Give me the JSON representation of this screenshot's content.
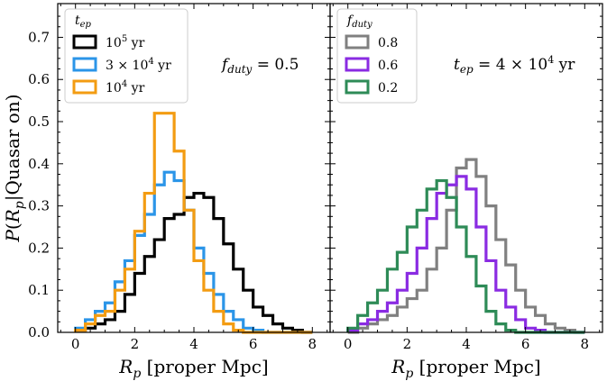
{
  "chart_data": [
    {
      "type": "line",
      "panel": "left",
      "title": "",
      "xlabel": "R_p [proper Mpc]",
      "ylabel": "P(R_p|Quasar on)",
      "xlim": [
        -0.6,
        8.6
      ],
      "ylim": [
        0,
        0.78
      ],
      "xticks": [
        0,
        2,
        4,
        6,
        8
      ],
      "yticks": [
        0.0,
        0.1,
        0.2,
        0.3,
        0.4,
        0.5,
        0.6,
        0.7
      ],
      "annotation": {
        "lhs": "f",
        "sub": "duty",
        "rhs": " = 0.5"
      },
      "legend": {
        "title_main": "t",
        "title_sub": "ep",
        "position": "upper-left"
      },
      "bin_edges": [
        0.0,
        0.333,
        0.667,
        1.0,
        1.333,
        1.667,
        2.0,
        2.333,
        2.667,
        3.0,
        3.333,
        3.667,
        4.0,
        4.333,
        4.667,
        5.0,
        5.333,
        5.667,
        6.0,
        6.333,
        6.667,
        7.0,
        7.333,
        7.667,
        8.0
      ],
      "series": [
        {
          "name": "10^5 yr",
          "label_base": "10",
          "label_sup": "5",
          "label_unit": " yr",
          "color": "#000000",
          "values": [
            0.005,
            0.01,
            0.02,
            0.03,
            0.05,
            0.09,
            0.14,
            0.18,
            0.22,
            0.27,
            0.28,
            0.32,
            0.33,
            0.32,
            0.27,
            0.21,
            0.15,
            0.1,
            0.06,
            0.04,
            0.02,
            0.01,
            0.005,
            0.0
          ]
        },
        {
          "name": "3 x 10^4 yr",
          "label_base": "3 × 10",
          "label_sup": "4",
          "label_unit": " yr",
          "color": "#2b95e8",
          "values": [
            0.01,
            0.03,
            0.05,
            0.07,
            0.12,
            0.17,
            0.23,
            0.28,
            0.35,
            0.38,
            0.36,
            0.29,
            0.2,
            0.14,
            0.09,
            0.05,
            0.03,
            0.01,
            0.005,
            0.0,
            0.0,
            0.0,
            0.0,
            0.0
          ]
        },
        {
          "name": "10^4 yr",
          "label_base": "10",
          "label_sup": "4",
          "label_unit": " yr",
          "color": "#f39c12",
          "values": [
            0.005,
            0.02,
            0.04,
            0.05,
            0.1,
            0.15,
            0.24,
            0.33,
            0.52,
            0.52,
            0.43,
            0.29,
            0.17,
            0.1,
            0.05,
            0.02,
            0.005,
            0.0,
            0.0,
            0.0,
            0.0,
            0.0,
            0.0,
            0.0
          ]
        }
      ]
    },
    {
      "type": "line",
      "panel": "right",
      "title": "",
      "xlabel": "R_p [proper Mpc]",
      "ylabel": "",
      "xlim": [
        -0.6,
        8.6
      ],
      "ylim": [
        0,
        0.78
      ],
      "xticks": [
        0,
        2,
        4,
        6,
        8
      ],
      "yticks": [],
      "annotation": {
        "lhs": "t",
        "sub": "ep",
        "rhs": " = 4 × 10",
        "sup": "4",
        "unit": " yr"
      },
      "legend": {
        "title_main": "f",
        "title_sub": "duty",
        "position": "upper-left"
      },
      "bin_edges": [
        0.0,
        0.333,
        0.667,
        1.0,
        1.333,
        1.667,
        2.0,
        2.333,
        2.667,
        3.0,
        3.333,
        3.667,
        4.0,
        4.333,
        4.667,
        5.0,
        5.333,
        5.667,
        6.0,
        6.333,
        6.667,
        7.0,
        7.333,
        7.667,
        8.0
      ],
      "series": [
        {
          "name": "0.8",
          "label_base": "0.8",
          "label_sup": "",
          "label_unit": "",
          "color": "#808080",
          "values": [
            0.0,
            0.01,
            0.02,
            0.03,
            0.04,
            0.06,
            0.08,
            0.1,
            0.15,
            0.2,
            0.29,
            0.39,
            0.41,
            0.37,
            0.3,
            0.22,
            0.16,
            0.1,
            0.06,
            0.04,
            0.02,
            0.01,
            0.005,
            0.0
          ]
        },
        {
          "name": "0.6",
          "label_base": "0.6",
          "label_sup": "",
          "label_unit": "",
          "color": "#8a2be2",
          "values": [
            0.005,
            0.02,
            0.03,
            0.05,
            0.07,
            0.1,
            0.14,
            0.2,
            0.27,
            0.33,
            0.35,
            0.37,
            0.34,
            0.25,
            0.17,
            0.1,
            0.06,
            0.03,
            0.01,
            0.005,
            0.0,
            0.0,
            0.0,
            0.0
          ]
        },
        {
          "name": "0.2",
          "label_base": "0.2",
          "label_sup": "",
          "label_unit": "",
          "color": "#2e8b57",
          "values": [
            0.01,
            0.04,
            0.07,
            0.1,
            0.15,
            0.19,
            0.25,
            0.29,
            0.34,
            0.36,
            0.32,
            0.25,
            0.18,
            0.11,
            0.05,
            0.02,
            0.005,
            0.0,
            0.0,
            0.0,
            0.0,
            0.0,
            0.0,
            0.0
          ]
        }
      ]
    }
  ]
}
